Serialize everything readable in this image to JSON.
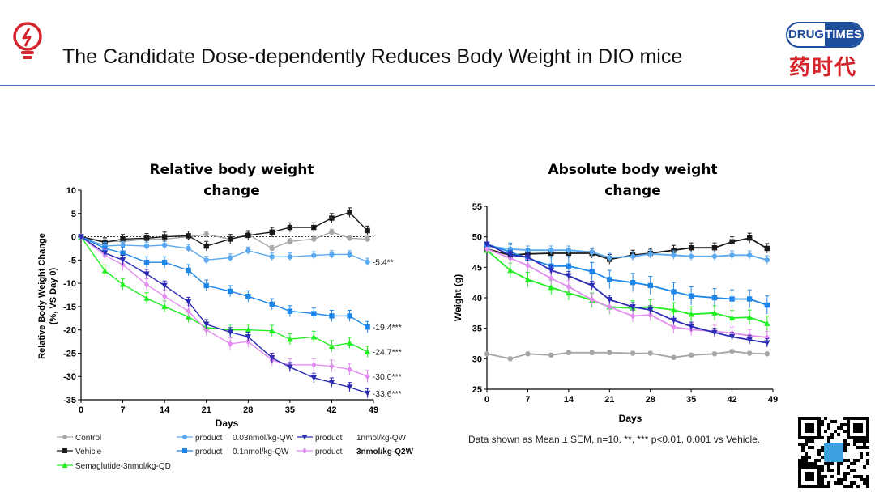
{
  "header": {
    "title": "The Candidate Dose-dependently Reduces Body Weight in DIO mice",
    "logo_en_left": "DRUG",
    "logo_en_right": "TIMES",
    "logo_cn": "药时代"
  },
  "footnote": "Data shown as Mean ± SEM, n=10. **, *** p<0.01, 0.001 vs Vehicle.",
  "colors": {
    "accent_line": "#4a7ac8",
    "control": "#a6a6a6",
    "vehicle": "#1a1a1a",
    "sema": "#22ee22",
    "p003": "#5aa9f0",
    "p01": "#1e86e8",
    "p1": "#2b2bb5",
    "p3": "#e28ef0"
  },
  "legend": {
    "control": "Control",
    "vehicle": "Vehicle",
    "sema": "Semaglutide-3nmol/kg-QD",
    "p003_prefix": "product",
    "p003_dose": "0.03nmol/kg-QW",
    "p01_prefix": "product",
    "p01_dose": "0.1nmol/kg-QW",
    "p1_prefix": "product",
    "p1_dose": "1nmol/kg-QW",
    "p3_prefix": "product",
    "p3_dose": "3nmol/kg-Q2W"
  },
  "chart_data": [
    {
      "type": "line",
      "title_line1": "Relative body weight",
      "title_line2": "change",
      "xlabel": "Days",
      "ylabel_line1": "Relative Body Weight Change",
      "ylabel_line2": "(%, VS Day 0)",
      "xlim": [
        0,
        49
      ],
      "ylim": [
        -35,
        10
      ],
      "xticks": [
        0,
        7,
        14,
        21,
        28,
        35,
        42,
        49
      ],
      "yticks": [
        10,
        5,
        0,
        -5,
        -10,
        -15,
        -20,
        -25,
        -30,
        -35
      ],
      "x": [
        0,
        4,
        7,
        11,
        14,
        18,
        21,
        25,
        28,
        32,
        35,
        39,
        42,
        45,
        48
      ],
      "series": [
        {
          "key": "control",
          "name": "Control",
          "marker": "circle",
          "values": [
            0,
            -1,
            -1,
            -0.5,
            -0.5,
            0,
            0.5,
            -0.5,
            0.5,
            -2.5,
            -1,
            -0.5,
            1,
            -0.3,
            -0.5
          ],
          "err": 0.6
        },
        {
          "key": "vehicle",
          "name": "Vehicle",
          "marker": "square",
          "values": [
            0,
            -1.2,
            -0.5,
            -0.3,
            0,
            0.2,
            -2,
            -0.5,
            0.3,
            1,
            2,
            2,
            4,
            5.2,
            1.3
          ],
          "err": 1
        },
        {
          "key": "p003",
          "name": "product 0.03nmol/kg-QW",
          "marker": "circle",
          "values": [
            0,
            -2,
            -1.8,
            -2,
            -1.8,
            -2.5,
            -5,
            -4.5,
            -3,
            -4.3,
            -4.3,
            -4,
            -3.8,
            -3.8,
            -5.4
          ],
          "err": 0.8
        },
        {
          "key": "p01",
          "name": "product 0.1nmol/kg-QW",
          "marker": "square",
          "values": [
            0,
            -2.5,
            -3.5,
            -5.5,
            -5.5,
            -7.2,
            -10.5,
            -11.7,
            -12.8,
            -14.5,
            -16,
            -16.5,
            -17,
            -17,
            -19.4
          ],
          "err": 1.2
        },
        {
          "key": "sema",
          "name": "Semaglutide-3nmol/kg-QD",
          "marker": "triangle-up",
          "values": [
            0,
            -7.3,
            -10.2,
            -13.2,
            -15,
            -17.2,
            -19.5,
            -20,
            -20,
            -20.2,
            -22,
            -21.5,
            -23.5,
            -22.8,
            -24.7
          ],
          "err": 1.2
        },
        {
          "key": "p1",
          "name": "product 1nmol/kg-QW",
          "marker": "triangle-down",
          "values": [
            0,
            -3.5,
            -5,
            -8,
            -10.5,
            -14,
            -18.8,
            -20.5,
            -21.5,
            -26,
            -28,
            -30.3,
            -31.3,
            -32.3,
            -33.6
          ],
          "err": 1
        },
        {
          "key": "p3",
          "name": "product 3nmol/kg-Q2W",
          "marker": "diamond",
          "values": [
            0,
            -4,
            -6,
            -10.3,
            -12.8,
            -16,
            -20,
            -23,
            -22.5,
            -26.5,
            -27.5,
            -27.5,
            -27.8,
            -28.5,
            -30
          ],
          "err": 1.3
        }
      ],
      "annotations": [
        {
          "series": "p003",
          "text": "-5.4**"
        },
        {
          "series": "p01",
          "text": "-19.4***"
        },
        {
          "series": "sema",
          "text": "-24.7***"
        },
        {
          "series": "p3",
          "text": "-30.0***"
        },
        {
          "series": "p1",
          "text": "-33.6***"
        }
      ]
    },
    {
      "type": "line",
      "title_line1": "Absolute body weight",
      "title_line2": "change",
      "xlabel": "Days",
      "ylabel": "Weight (g)",
      "xlim": [
        0,
        49
      ],
      "ylim": [
        25,
        55
      ],
      "xticks": [
        0,
        7,
        14,
        21,
        28,
        35,
        42,
        49
      ],
      "yticks": [
        55,
        50,
        45,
        40,
        35,
        30,
        25
      ],
      "x": [
        0,
        4,
        7,
        11,
        14,
        18,
        21,
        25,
        28,
        32,
        35,
        39,
        42,
        45,
        48
      ],
      "series": [
        {
          "key": "control",
          "name": "Control",
          "marker": "circle",
          "values": [
            30.8,
            30,
            30.8,
            30.6,
            31,
            31,
            31,
            30.9,
            30.9,
            30.2,
            30.6,
            30.8,
            31.2,
            30.9,
            30.8
          ],
          "err": 0.3
        },
        {
          "key": "vehicle",
          "name": "Vehicle",
          "marker": "square",
          "values": [
            48,
            47,
            47.2,
            47.3,
            47.3,
            47.3,
            46.3,
            47,
            47.3,
            47.8,
            48.2,
            48.2,
            49.2,
            49.8,
            48.1
          ],
          "err": 0.8
        },
        {
          "key": "p003",
          "name": "product 0.03nmol/kg-QW",
          "marker": "circle",
          "values": [
            48.5,
            48,
            47.8,
            47.8,
            47.8,
            47.5,
            46.6,
            46.8,
            47.2,
            47,
            46.8,
            46.8,
            47,
            47,
            46.2
          ],
          "err": 0.7
        },
        {
          "key": "p01",
          "name": "product 0.1nmol/kg-QW",
          "marker": "square",
          "values": [
            48.8,
            47.5,
            46.5,
            45.2,
            45.2,
            44.3,
            43,
            42.5,
            42,
            41,
            40.3,
            40,
            39.8,
            39.8,
            38.8
          ],
          "err": 1.5
        },
        {
          "key": "sema",
          "name": "Semaglutide-3nmol/kg-QD",
          "marker": "triangle-up",
          "values": [
            47.8,
            44.5,
            43,
            41.7,
            40.8,
            39.6,
            38.5,
            38.3,
            38.5,
            38,
            37.3,
            37.5,
            36.7,
            36.8,
            35.8
          ],
          "err": 1.2
        },
        {
          "key": "p1",
          "name": "product 1nmol/kg-QW",
          "marker": "triangle-down",
          "values": [
            48.8,
            47,
            46.7,
            44.5,
            43.6,
            42,
            39.7,
            38.5,
            38,
            36.3,
            35.3,
            34.3,
            33.6,
            33.1,
            32.6
          ],
          "err": 0.7
        },
        {
          "key": "p3",
          "name": "product 3nmol/kg-Q2W",
          "marker": "diamond",
          "values": [
            48,
            46.5,
            45.3,
            43.2,
            41.8,
            39.7,
            38.5,
            37,
            37.2,
            35.2,
            34.8,
            34.5,
            34.2,
            33.8,
            33.5
          ],
          "err": 1
        }
      ]
    }
  ]
}
